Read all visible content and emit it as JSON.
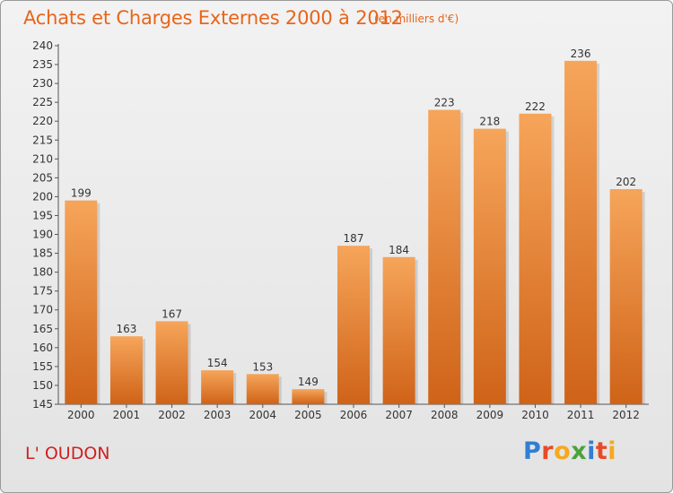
{
  "header": {
    "title": "Achats et Charges Externes 2000 à 2012",
    "subtitle": "(en milliers d'€)"
  },
  "footer": {
    "commune": "L' OUDON",
    "logo_letters": [
      "P",
      "r",
      "o",
      "x",
      "i",
      "t",
      "i"
    ]
  },
  "colors": {
    "title": "#e8651a",
    "commune": "#cf2020",
    "bar_top": "#f6a55a",
    "bar_bottom": "#cf6318",
    "logo": [
      "#2f7fd3",
      "#e84a28",
      "#f5a91d",
      "#4aa33b",
      "#2f7fd3",
      "#e84a28",
      "#f5a91d"
    ]
  },
  "chart_data": {
    "type": "bar",
    "title": "Achats et Charges Externes 2000 à 2012",
    "subtitle": "(en milliers d'€)",
    "xlabel": "",
    "ylabel": "",
    "categories": [
      "2000",
      "2001",
      "2002",
      "2003",
      "2004",
      "2005",
      "2006",
      "2007",
      "2008",
      "2009",
      "2010",
      "2011",
      "2012"
    ],
    "values": [
      199,
      163,
      167,
      154,
      153,
      149,
      187,
      184,
      223,
      218,
      222,
      236,
      202
    ],
    "data_labels": [
      "199",
      "163",
      "167",
      "154",
      "153",
      "149",
      "187",
      "184",
      "223",
      "218",
      "222",
      "236",
      "202"
    ],
    "ylim": [
      145,
      240
    ],
    "yticks": [
      145,
      150,
      155,
      160,
      165,
      170,
      175,
      180,
      185,
      190,
      195,
      200,
      205,
      210,
      215,
      220,
      225,
      230,
      235,
      240
    ],
    "grid": false,
    "legend": "none"
  }
}
